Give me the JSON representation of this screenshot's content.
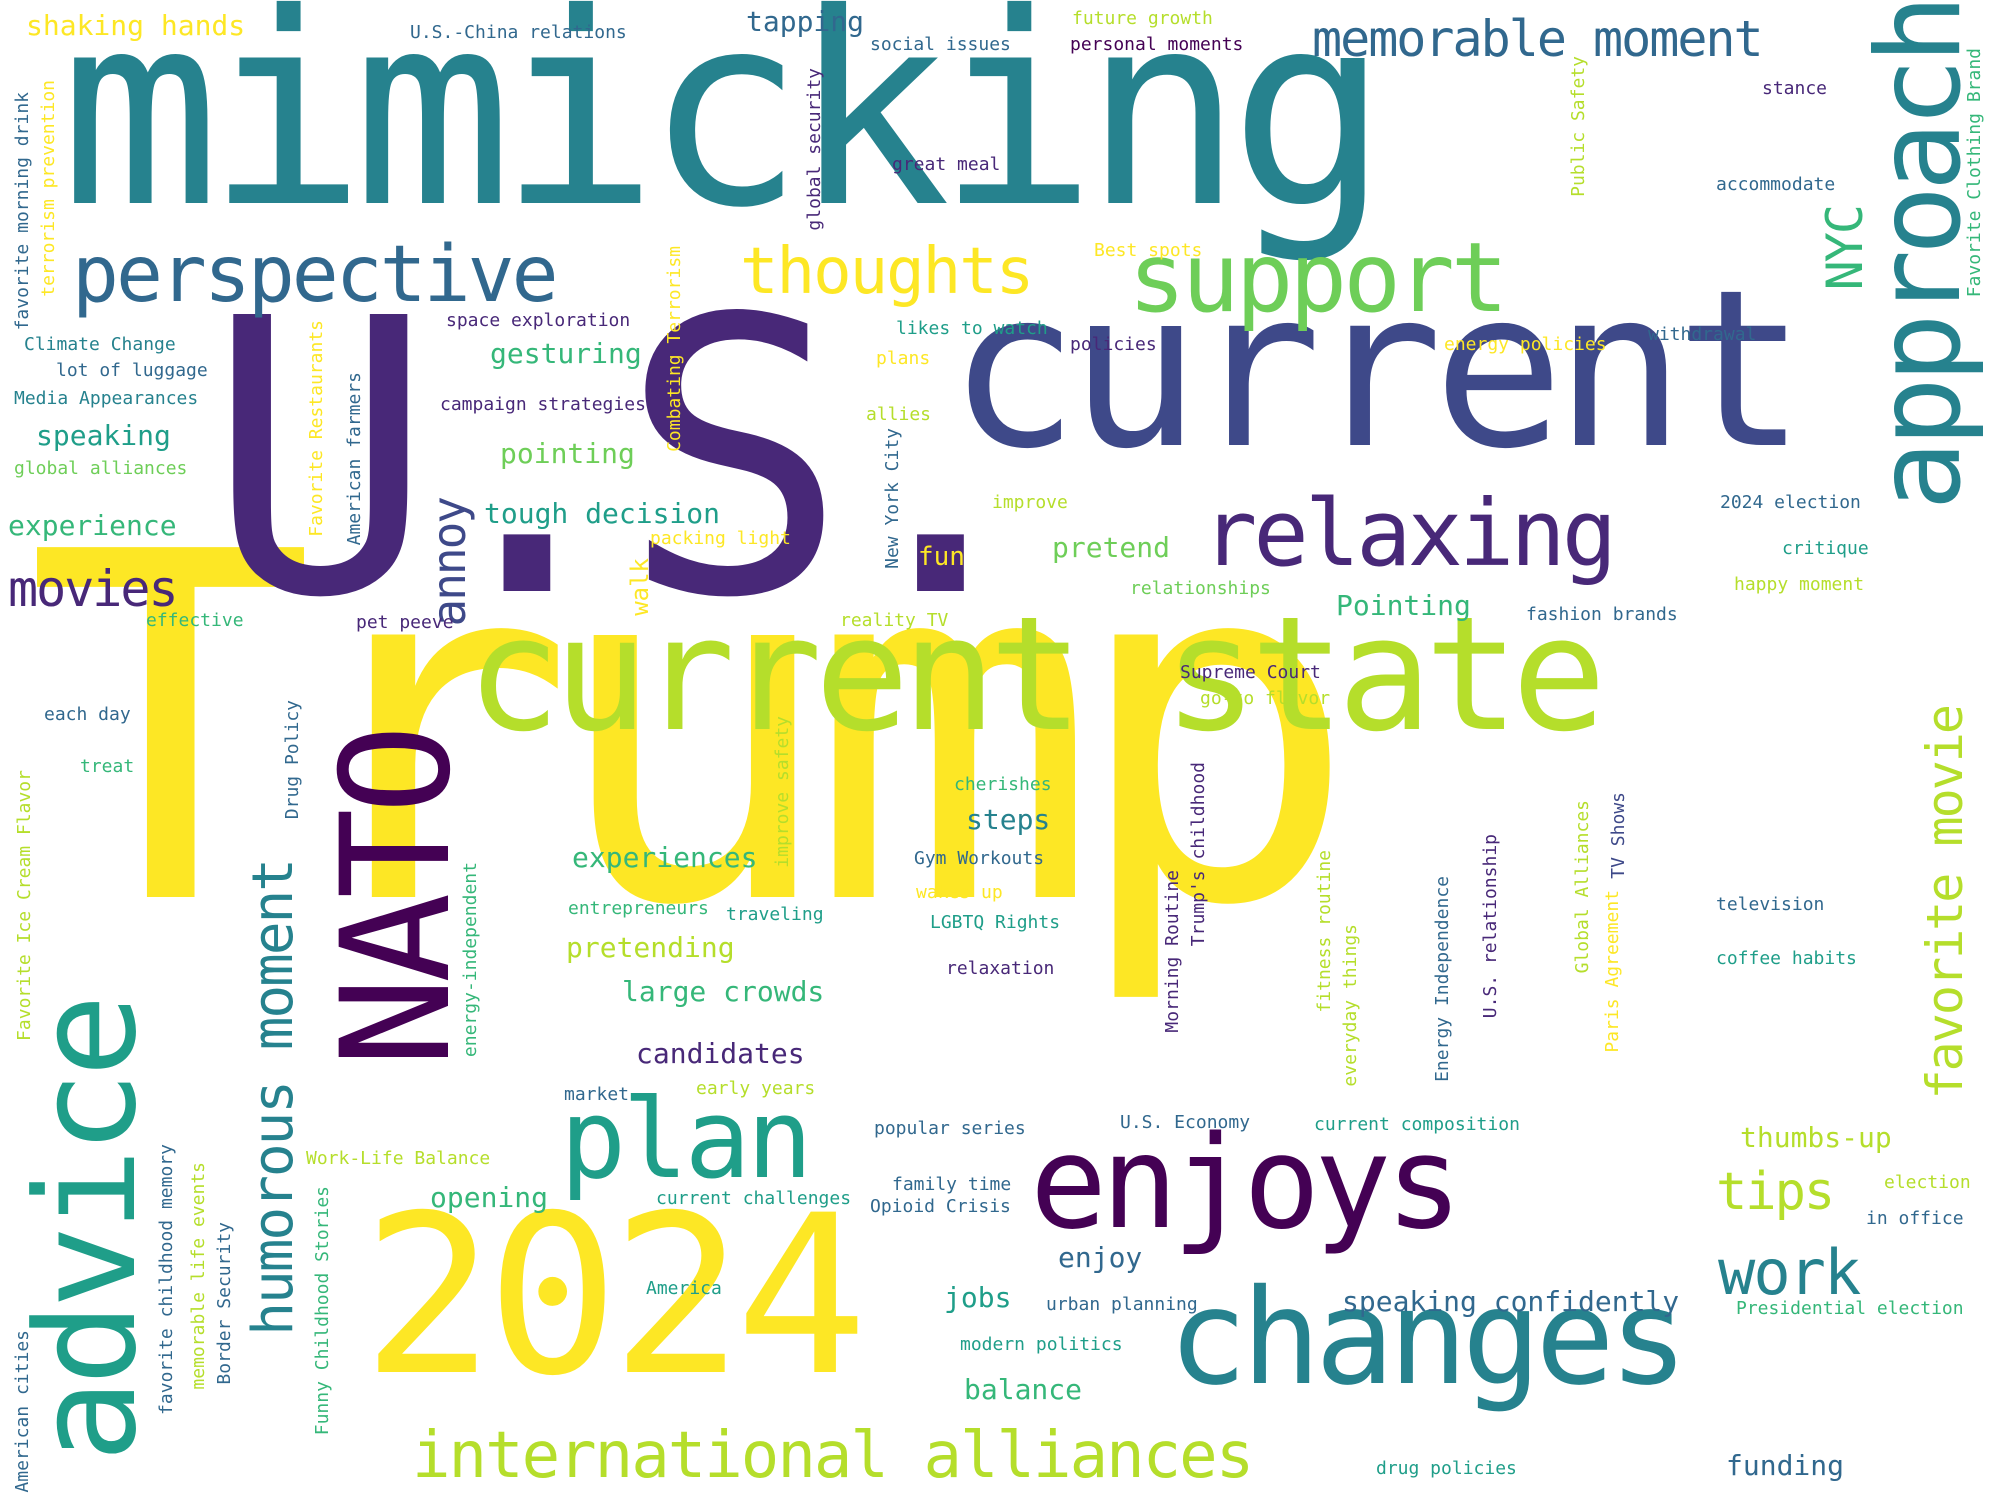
{
  "words": [
    {
      "id": "w1",
      "text": "Trump"
    },
    {
      "id": "w2",
      "text": "mimicking"
    },
    {
      "id": "w3",
      "text": "U.S."
    },
    {
      "id": "w4",
      "text": "current"
    },
    {
      "id": "w5",
      "text": "current state"
    },
    {
      "id": "w6",
      "text": "2024"
    },
    {
      "id": "w7",
      "text": "advice"
    },
    {
      "id": "w8",
      "text": "changes"
    },
    {
      "id": "w9",
      "text": "enjoys"
    },
    {
      "id": "w10",
      "text": "approach"
    },
    {
      "id": "w11",
      "text": "NATO"
    },
    {
      "id": "w12",
      "text": "plan"
    },
    {
      "id": "w13",
      "text": "support"
    },
    {
      "id": "w14",
      "text": "perspective"
    },
    {
      "id": "w15",
      "text": "relaxing"
    },
    {
      "id": "w16",
      "text": "international alliances"
    },
    {
      "id": "w17",
      "text": "thoughts"
    },
    {
      "id": "w18",
      "text": "memorable moment"
    },
    {
      "id": "w19",
      "text": "humorous moment"
    },
    {
      "id": "w20",
      "text": "work"
    },
    {
      "id": "w21",
      "text": "favorite movie"
    },
    {
      "id": "w22",
      "text": "movies"
    },
    {
      "id": "w23",
      "text": "annoy"
    },
    {
      "id": "w24",
      "text": "tips"
    },
    {
      "id": "w25",
      "text": "NYC"
    },
    {
      "id": "w26",
      "text": "tough decision"
    },
    {
      "id": "w27",
      "text": "speaking confidently"
    },
    {
      "id": "w28",
      "text": "large crowds"
    },
    {
      "id": "w29",
      "text": "pretending"
    },
    {
      "id": "w30",
      "text": "experiences"
    },
    {
      "id": "w31",
      "text": "candidates"
    },
    {
      "id": "w32",
      "text": "gesturing"
    },
    {
      "id": "w33",
      "text": "pointing"
    },
    {
      "id": "w34",
      "text": "speaking"
    },
    {
      "id": "w35",
      "text": "experience"
    },
    {
      "id": "w36",
      "text": "opening"
    },
    {
      "id": "w37",
      "text": "thumbs-up"
    },
    {
      "id": "w38",
      "text": "Pointing"
    },
    {
      "id": "w39",
      "text": "pretend"
    },
    {
      "id": "w40",
      "text": "steps"
    },
    {
      "id": "w41",
      "text": "jobs"
    },
    {
      "id": "w42",
      "text": "enjoy"
    },
    {
      "id": "w43",
      "text": "balance"
    },
    {
      "id": "w44",
      "text": "funding"
    },
    {
      "id": "w45",
      "text": "tapping"
    },
    {
      "id": "w46",
      "text": "shaking hands"
    },
    {
      "id": "w47",
      "text": "fun"
    },
    {
      "id": "w48",
      "text": "walk"
    },
    {
      "id": "w49",
      "text": "U.S.-China relations"
    },
    {
      "id": "w50",
      "text": "social issues"
    },
    {
      "id": "w51",
      "text": "future growth"
    },
    {
      "id": "w52",
      "text": "personal moments"
    },
    {
      "id": "w53",
      "text": "stance"
    },
    {
      "id": "w54",
      "text": "great meal"
    },
    {
      "id": "w55",
      "text": "accommodate"
    },
    {
      "id": "w56",
      "text": "Best spots"
    },
    {
      "id": "w57",
      "text": "space exploration"
    },
    {
      "id": "w58",
      "text": "likes to watch"
    },
    {
      "id": "w59",
      "text": "policies"
    },
    {
      "id": "w60",
      "text": "energy policies"
    },
    {
      "id": "w61",
      "text": "withdrawal"
    },
    {
      "id": "w62",
      "text": "Climate Change"
    },
    {
      "id": "w63",
      "text": "lot of luggage"
    },
    {
      "id": "w64",
      "text": "Media Appearances"
    },
    {
      "id": "w65",
      "text": "campaign strategies"
    },
    {
      "id": "w66",
      "text": "plans"
    },
    {
      "id": "w67",
      "text": "allies"
    },
    {
      "id": "w68",
      "text": "global alliances"
    },
    {
      "id": "w69",
      "text": "improve"
    },
    {
      "id": "w70",
      "text": "2024 election"
    },
    {
      "id": "w71",
      "text": "packing light"
    },
    {
      "id": "w72",
      "text": "critique"
    },
    {
      "id": "w73",
      "text": "relationships"
    },
    {
      "id": "w74",
      "text": "happy moment"
    },
    {
      "id": "w75",
      "text": "effective"
    },
    {
      "id": "w76",
      "text": "pet peeve"
    },
    {
      "id": "w77",
      "text": "reality TV"
    },
    {
      "id": "w78",
      "text": "fashion brands"
    },
    {
      "id": "w79",
      "text": "Supreme Court"
    },
    {
      "id": "w80",
      "text": "go-to flavor"
    },
    {
      "id": "w81",
      "text": "each day"
    },
    {
      "id": "w82",
      "text": "treat"
    },
    {
      "id": "w83",
      "text": "cherishes"
    },
    {
      "id": "w84",
      "text": "Gym Workouts"
    },
    {
      "id": "w85",
      "text": "wakes up"
    },
    {
      "id": "w86",
      "text": "LGBTQ Rights"
    },
    {
      "id": "w87",
      "text": "entrepreneurs"
    },
    {
      "id": "w88",
      "text": "traveling"
    },
    {
      "id": "w89",
      "text": "relaxation"
    },
    {
      "id": "w90",
      "text": "television"
    },
    {
      "id": "w91",
      "text": "coffee habits"
    },
    {
      "id": "w92",
      "text": "market"
    },
    {
      "id": "w93",
      "text": "early years"
    },
    {
      "id": "w94",
      "text": "popular series"
    },
    {
      "id": "w95",
      "text": "U.S. Economy"
    },
    {
      "id": "w96",
      "text": "current composition"
    },
    {
      "id": "w97",
      "text": "Work-Life Balance"
    },
    {
      "id": "w98",
      "text": "family time"
    },
    {
      "id": "w99",
      "text": "current challenges"
    },
    {
      "id": "w100",
      "text": "Opioid Crisis"
    },
    {
      "id": "w101",
      "text": "election"
    },
    {
      "id": "w102",
      "text": "in office"
    },
    {
      "id": "w103",
      "text": "America"
    },
    {
      "id": "w104",
      "text": "urban planning"
    },
    {
      "id": "w105",
      "text": "modern politics"
    },
    {
      "id": "w106",
      "text": "Presidential election"
    },
    {
      "id": "w107",
      "text": "drug policies"
    },
    {
      "id": "w108",
      "text": "favorite morning drink"
    },
    {
      "id": "w109",
      "text": "terrorism prevention"
    },
    {
      "id": "w110",
      "text": "global security"
    },
    {
      "id": "w111",
      "text": "Combating Terrorism"
    },
    {
      "id": "w112",
      "text": "Favorite Restaurants"
    },
    {
      "id": "w113",
      "text": "American farmers"
    },
    {
      "id": "w114",
      "text": "New York City"
    },
    {
      "id": "w115",
      "text": "Public Safety"
    },
    {
      "id": "w116",
      "text": "Favorite Clothing Brand"
    },
    {
      "id": "w117",
      "text": "Favorite Ice Cream Flavor"
    },
    {
      "id": "w118",
      "text": "Drug Policy"
    },
    {
      "id": "w119",
      "text": "improve safety"
    },
    {
      "id": "w120",
      "text": "energy-independent"
    },
    {
      "id": "w121",
      "text": "Morning Routine"
    },
    {
      "id": "w122",
      "text": "Trump's childhood"
    },
    {
      "id": "w123",
      "text": "fitness routine"
    },
    {
      "id": "w124",
      "text": "everyday things"
    },
    {
      "id": "w125",
      "text": "Energy Independence"
    },
    {
      "id": "w126",
      "text": "U.S. relationship"
    },
    {
      "id": "w127",
      "text": "Global Alliances"
    },
    {
      "id": "w128",
      "text": "Paris Agreement"
    },
    {
      "id": "w129",
      "text": "TV Shows"
    },
    {
      "id": "w130",
      "text": "American cities"
    },
    {
      "id": "w131",
      "text": "favorite childhood memory"
    },
    {
      "id": "w132",
      "text": "memorable life events"
    },
    {
      "id": "w133",
      "text": "Border Security"
    },
    {
      "id": "w134",
      "text": "Funny Childhood Stories"
    }
  ],
  "colors": {
    "yellow": "#fde725",
    "lime": "#b5de2b",
    "green": "#6ece58",
    "teal_green": "#35b779",
    "teal": "#1f9e89",
    "blue_teal": "#26828e",
    "blue": "#31688e",
    "indigo": "#3e4989",
    "violet": "#482878",
    "purple": "#440154"
  }
}
